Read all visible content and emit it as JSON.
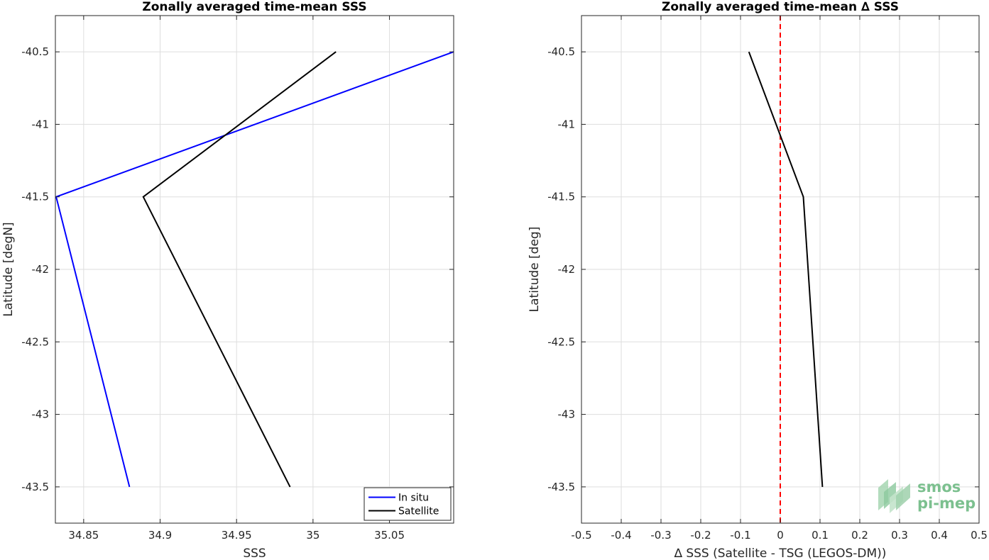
{
  "chart_data": [
    {
      "type": "line",
      "title": "Zonally averaged time-mean SSS",
      "xlabel": "SSS",
      "ylabel": "Latitude [degN]",
      "xlim": [
        34.8315,
        35.092
      ],
      "ylim": [
        -43.75,
        -40.25
      ],
      "xticks": [
        34.85,
        34.9,
        34.95,
        35,
        35.05
      ],
      "xtick_labels": [
        "34.85",
        "34.9",
        "34.95",
        "35",
        "35.05"
      ],
      "yticks": [
        -43.5,
        -43,
        -42.5,
        -42,
        -41.5,
        -41,
        -40.5
      ],
      "ytick_labels": [
        "-43.5",
        "-43",
        "-42.5",
        "-42",
        "-41.5",
        "-41",
        "-40.5"
      ],
      "grid": true,
      "legend": "bottom-right",
      "series": [
        {
          "name": "In situ",
          "color": "#0000ff",
          "points": [
            [
              35.092,
              -40.5
            ],
            [
              34.832,
              -41.5
            ],
            [
              34.88,
              -43.5
            ]
          ]
        },
        {
          "name": "Satellite",
          "color": "#000000",
          "points": [
            [
              35.015,
              -40.5
            ],
            [
              34.889,
              -41.5
            ],
            [
              34.937,
              -42.5
            ],
            [
              34.985,
              -43.5
            ]
          ]
        }
      ]
    },
    {
      "type": "line",
      "title": "Zonally averaged time-mean ∆ SSS",
      "xlabel": "∆ SSS (Satellite - TSG (LEGOS-DM))",
      "ylabel": "Latitude [deg]",
      "xlim": [
        -0.5,
        0.5
      ],
      "ylim": [
        -43.75,
        -40.25
      ],
      "xticks": [
        -0.5,
        -0.4,
        -0.3,
        -0.2,
        -0.1,
        0,
        0.1,
        0.2,
        0.3,
        0.4,
        0.5
      ],
      "xtick_labels": [
        "-0.5",
        "-0.4",
        "-0.3",
        "-0.2",
        "-0.1",
        "0",
        "0.1",
        "0.2",
        "0.3",
        "0.4",
        "0.5"
      ],
      "yticks": [
        -43.5,
        -43,
        -42.5,
        -42,
        -41.5,
        -41,
        -40.5
      ],
      "ytick_labels": [
        "-43.5",
        "-43",
        "-42.5",
        "-42",
        "-41.5",
        "-41",
        "-40.5"
      ],
      "grid": true,
      "reference_line": {
        "x": 0,
        "color": "#ff0000",
        "style": "dashed"
      },
      "series": [
        {
          "color": "#000000",
          "points": [
            [
              -0.079,
              -40.5
            ],
            [
              0.058,
              -41.5
            ],
            [
              0.106,
              -43.5
            ]
          ]
        }
      ]
    }
  ],
  "logo": {
    "line1": "smos",
    "line2": "pi-mep",
    "color": "#7cc08f"
  }
}
